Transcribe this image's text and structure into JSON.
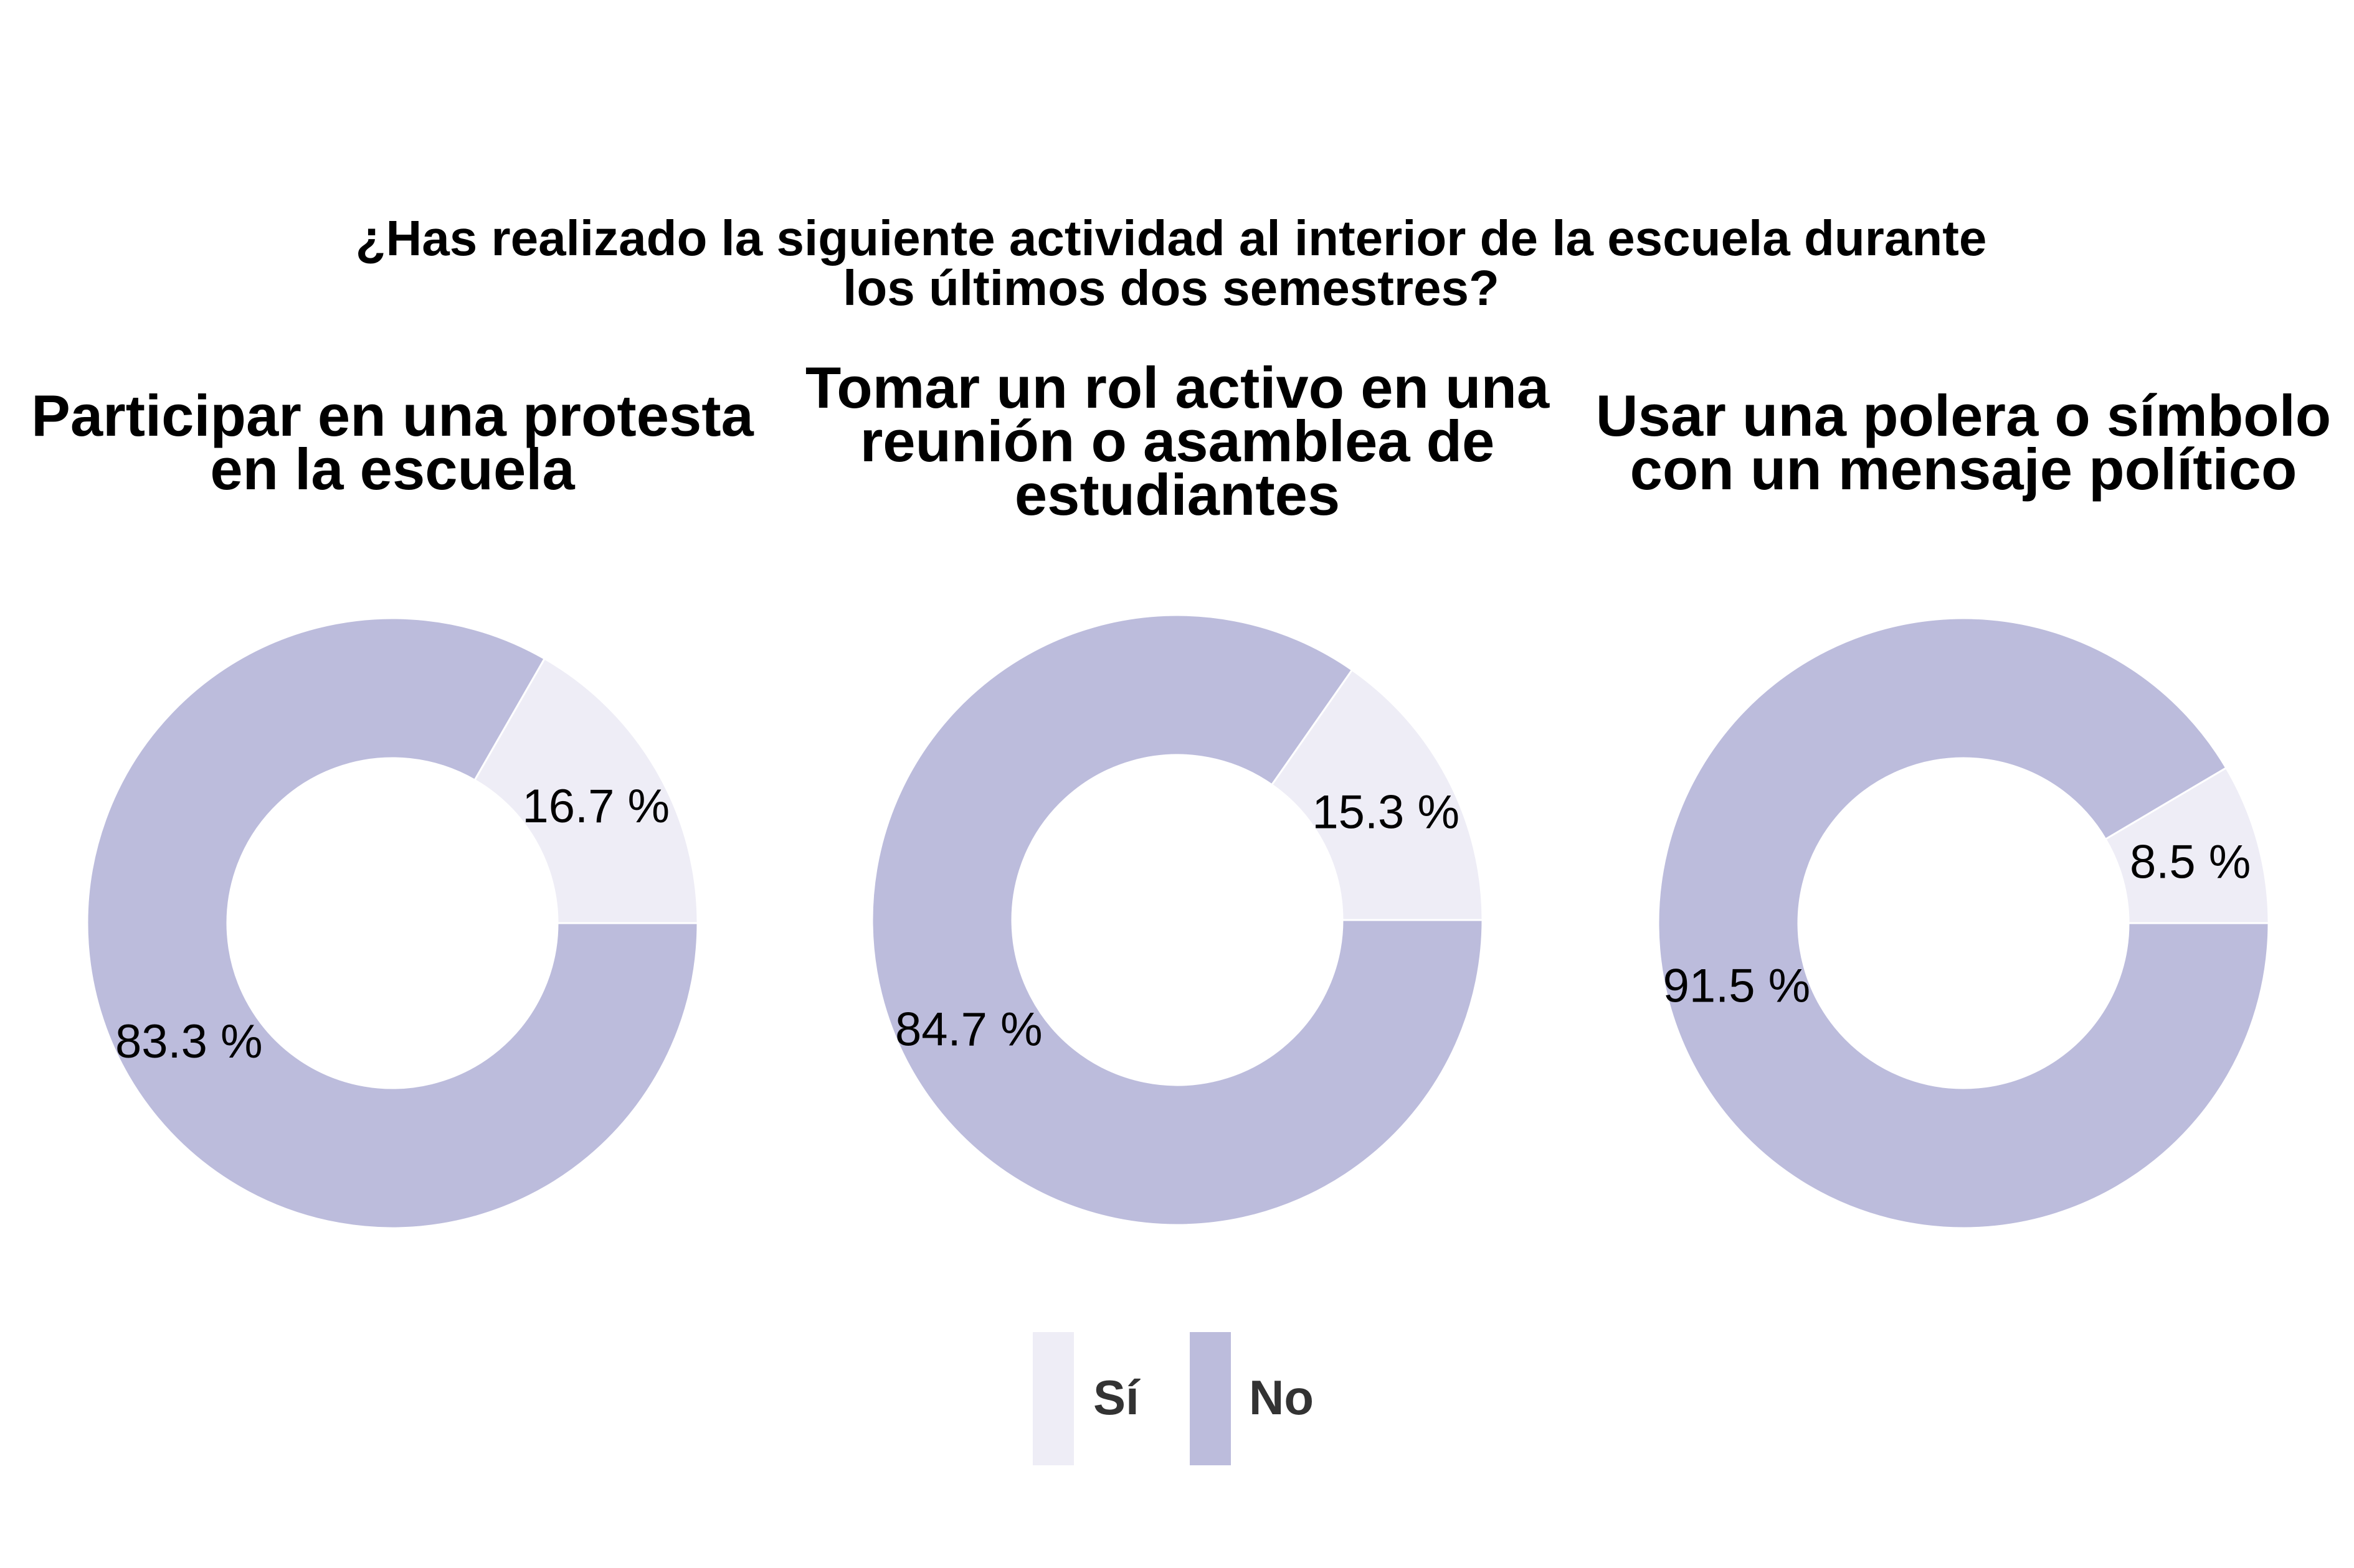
{
  "chart_data": {
    "type": "pie",
    "variant": "donut",
    "title_lines": [
      "¿Has realizado la siguiente actividad al interior de la escuela durante",
      "los últimos dos semestres?"
    ],
    "categories": [
      "Sí",
      "No"
    ],
    "colors": {
      "Sí": "#eeedf6",
      "No": "#bcbcdc"
    },
    "legend_position": "bottom",
    "panels": [
      {
        "title_lines": [
          "Participar en una protesta",
          "en la escuela"
        ],
        "values": [
          16.7,
          83.3
        ],
        "labels": [
          "16.7 %",
          "83.3 %"
        ]
      },
      {
        "title_lines": [
          "Tomar un rol activo en una",
          "reunión o asamblea de",
          "estudiantes"
        ],
        "values": [
          15.3,
          84.7
        ],
        "labels": [
          "15.3 %",
          "84.7 %"
        ]
      },
      {
        "title_lines": [
          "Usar una polera o símbolo",
          "con un mensaje político"
        ],
        "values": [
          8.5,
          91.5
        ],
        "labels": [
          "8.5 %",
          "91.5 %"
        ]
      }
    ]
  }
}
